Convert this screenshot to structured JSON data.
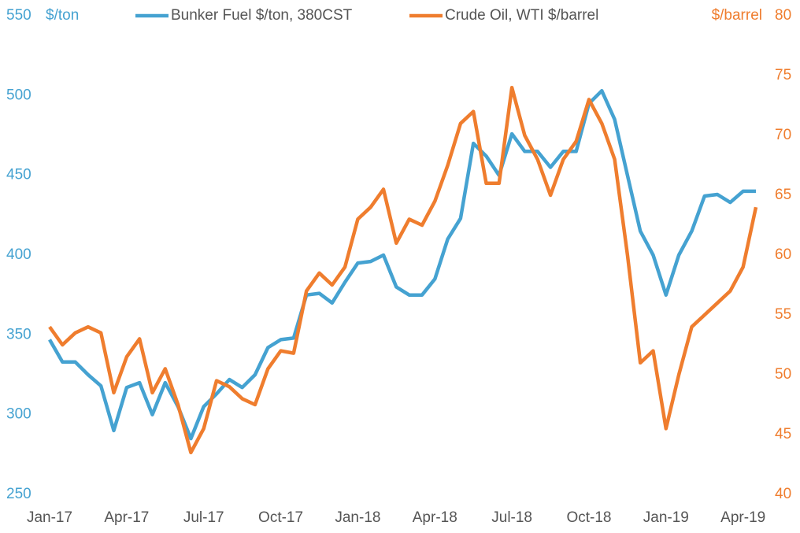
{
  "chart_data": {
    "type": "line",
    "ylabel": "$/ton",
    "y2label": "$/barrel",
    "categories": [
      "Jan-17",
      null,
      null,
      null,
      null,
      null,
      "Apr-17",
      null,
      null,
      null,
      null,
      null,
      "Jul-17",
      null,
      null,
      null,
      null,
      null,
      "Oct-17",
      null,
      null,
      null,
      null,
      null,
      "Jan-18",
      null,
      null,
      null,
      null,
      null,
      "Apr-18",
      null,
      null,
      null,
      null,
      null,
      "Jul-18",
      null,
      null,
      null,
      null,
      null,
      "Oct-18",
      null,
      null,
      null,
      null,
      null,
      "Jan-19",
      null,
      null,
      null,
      null,
      null,
      "Apr-19",
      null
    ],
    "series": [
      {
        "name": "Bunker Fuel $/ton, 380CST",
        "color": "#45a2d1",
        "axis": "y",
        "values": [
          347,
          333,
          333,
          325,
          318,
          290,
          317,
          320,
          300,
          320,
          305,
          285,
          305,
          313,
          322,
          317,
          325,
          342,
          347,
          348,
          375,
          376,
          370,
          383,
          395,
          396,
          400,
          380,
          375,
          375,
          385,
          410,
          423,
          470,
          462,
          450,
          476,
          465,
          465,
          455,
          465,
          465,
          495,
          503,
          485,
          450,
          415,
          400,
          375,
          400,
          415,
          437,
          438,
          433,
          440,
          440
        ]
      },
      {
        "name": "Crude Oil, WTI $/barrel",
        "color": "#ef7d2e",
        "axis": "y2",
        "values": [
          54,
          52.5,
          53.5,
          54,
          53.5,
          48.5,
          51.5,
          53,
          48.5,
          50.5,
          47.5,
          43.5,
          45.5,
          49.5,
          49,
          48,
          47.5,
          50.5,
          52,
          51.8,
          57,
          58.5,
          57.5,
          59,
          63,
          64,
          65.5,
          61,
          63,
          62.5,
          64.5,
          67.5,
          71,
          72,
          66,
          66,
          74,
          70,
          68,
          65,
          68,
          69.5,
          73,
          71,
          68,
          60,
          51,
          52,
          45.5,
          50,
          54,
          55,
          56,
          57,
          59,
          64
        ]
      }
    ],
    "ylim": [
      250,
      550
    ],
    "yticks": [
      250,
      300,
      350,
      400,
      450,
      500,
      550
    ],
    "y2lim": [
      40,
      80
    ],
    "y2ticks": [
      40,
      45,
      50,
      55,
      60,
      65,
      70,
      75,
      80
    ],
    "ycolor": "#45a2d1",
    "y2color": "#ef7d2e",
    "grid": false,
    "legend": "top"
  }
}
